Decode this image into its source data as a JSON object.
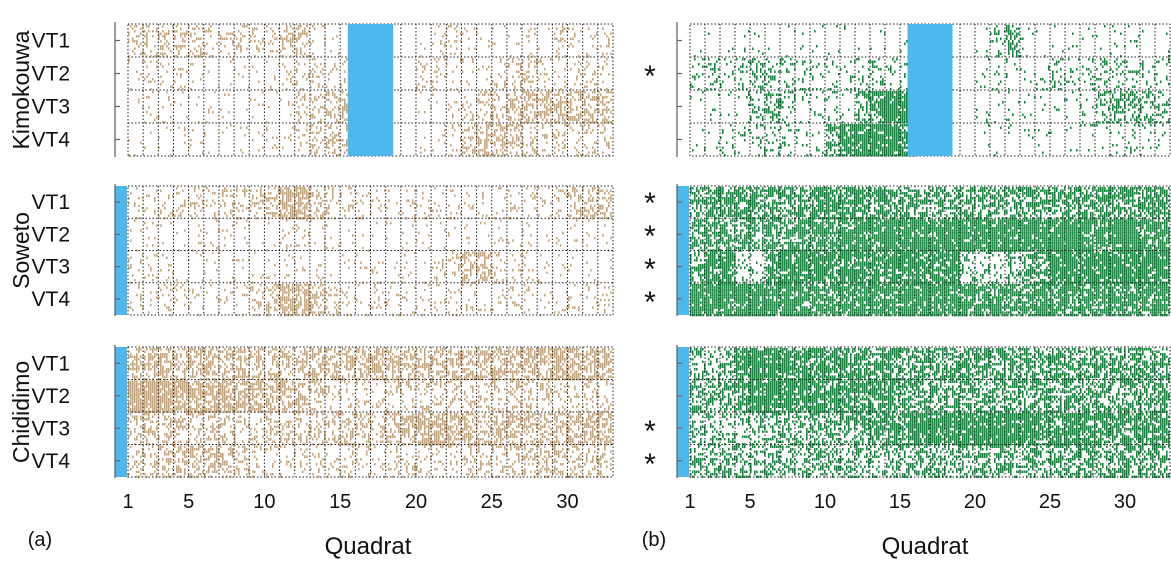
{
  "chart_data": [
    {
      "type": "heatmap",
      "panel_label": "(a)",
      "xlabel": "Quadrat",
      "x_ticks": [
        "1",
        "5",
        "10",
        "15",
        "20",
        "25",
        "30"
      ],
      "x_range": [
        1,
        32
      ],
      "marker_color": "#C8A67A",
      "water_color": "#4DB8EC",
      "sites": [
        {
          "name": "Kimokouwa",
          "rows": [
            "VT1",
            "VT2",
            "VT3",
            "VT4"
          ],
          "significance": [
            "",
            "*",
            "",
            ""
          ],
          "water_quadrats": [
            16,
            19
          ],
          "density": [
            [
              0.3,
              0.3,
              0.3,
              0.25,
              0.2,
              0.15,
              0.15,
              0.15,
              0.15,
              0.2,
              0.35,
              0.35,
              0.1,
              0.05,
              0.05,
              0,
              0,
              0,
              0,
              0.05,
              0.15,
              0.2,
              0.1,
              0.05,
              0.05,
              0.05,
              0.1,
              0.05,
              0.15,
              0.15,
              0.15,
              0.15
            ],
            [
              0.1,
              0.1,
              0.15,
              0.15,
              0.1,
              0.05,
              0.05,
              0.05,
              0.05,
              0.05,
              0.1,
              0.2,
              0.25,
              0.1,
              0.1,
              0,
              0,
              0,
              0,
              0.2,
              0.15,
              0.1,
              0.1,
              0.1,
              0.15,
              0.25,
              0.3,
              0.3,
              0.15,
              0.15,
              0.15,
              0.1
            ],
            [
              0.05,
              0.05,
              0.05,
              0.05,
              0.05,
              0.05,
              0.05,
              0.05,
              0.05,
              0.05,
              0.1,
              0.15,
              0.25,
              0.4,
              0.45,
              0,
              0,
              0,
              0,
              0.05,
              0.05,
              0.1,
              0.15,
              0.25,
              0.3,
              0.45,
              0.5,
              0.5,
              0.5,
              0.45,
              0.5,
              0.5
            ],
            [
              0.05,
              0.05,
              0.05,
              0.05,
              0.05,
              0.05,
              0.05,
              0.05,
              0.05,
              0.05,
              0.1,
              0.15,
              0.25,
              0.35,
              0.35,
              0,
              0,
              0,
              0,
              0.05,
              0.1,
              0.2,
              0.35,
              0.45,
              0.5,
              0.35,
              0.25,
              0.2,
              0.2,
              0.2,
              0.2,
              0.15
            ]
          ]
        },
        {
          "name": "Soweto",
          "rows": [
            "VT1",
            "VT2",
            "VT3",
            "VT4"
          ],
          "significance": [
            "*",
            "*",
            "*",
            "*"
          ],
          "water_quadrats": [
            0,
            0
          ],
          "density": [
            [
              0.15,
              0.15,
              0.15,
              0.15,
              0.2,
              0.2,
              0.2,
              0.2,
              0.25,
              0.4,
              0.7,
              0.7,
              0.4,
              0.2,
              0.15,
              0.1,
              0.1,
              0.1,
              0.1,
              0.1,
              0.1,
              0.1,
              0.1,
              0.1,
              0.1,
              0.1,
              0.1,
              0.1,
              0.15,
              0.35,
              0.45,
              0.45
            ],
            [
              0.05,
              0.05,
              0.05,
              0.05,
              0.05,
              0.05,
              0.05,
              0.05,
              0.05,
              0.05,
              0.1,
              0.15,
              0.1,
              0.05,
              0.05,
              0.05,
              0.05,
              0.05,
              0.05,
              0.05,
              0.05,
              0.05,
              0.05,
              0.05,
              0.05,
              0.05,
              0.05,
              0.05,
              0.05,
              0.05,
              0.05,
              0.05
            ],
            [
              0.1,
              0.1,
              0.1,
              0.05,
              0.05,
              0.05,
              0.05,
              0.05,
              0.05,
              0.05,
              0.05,
              0.05,
              0.05,
              0.05,
              0.05,
              0.05,
              0.05,
              0.05,
              0.05,
              0.05,
              0.1,
              0.2,
              0.45,
              0.45,
              0.2,
              0.1,
              0.05,
              0.05,
              0.05,
              0.05,
              0.05,
              0.05
            ],
            [
              0.1,
              0.1,
              0.1,
              0.1,
              0.1,
              0.1,
              0.1,
              0.1,
              0.2,
              0.4,
              0.7,
              0.7,
              0.4,
              0.2,
              0.1,
              0.1,
              0.1,
              0.1,
              0.1,
              0.1,
              0.1,
              0.1,
              0.1,
              0.1,
              0.1,
              0.1,
              0.1,
              0.1,
              0.1,
              0.1,
              0.1,
              0.1
            ]
          ]
        },
        {
          "name": "Chididimo",
          "rows": [
            "VT1",
            "VT2",
            "VT3",
            "VT4"
          ],
          "significance": [
            "",
            "",
            "*",
            "*"
          ],
          "water_quadrats": [
            0,
            0
          ],
          "density": [
            [
              0.5,
              0.5,
              0.5,
              0.5,
              0.5,
              0.55,
              0.5,
              0.5,
              0.5,
              0.45,
              0.45,
              0.45,
              0.45,
              0.45,
              0.45,
              0.5,
              0.5,
              0.5,
              0.5,
              0.5,
              0.5,
              0.5,
              0.5,
              0.5,
              0.55,
              0.55,
              0.55,
              0.6,
              0.7,
              0.7,
              0.6,
              0.6
            ],
            [
              0.9,
              0.9,
              0.85,
              0.8,
              0.75,
              0.7,
              0.65,
              0.6,
              0.55,
              0.5,
              0.45,
              0.35,
              0.25,
              0.2,
              0.2,
              0.2,
              0.2,
              0.2,
              0.2,
              0.2,
              0.2,
              0.2,
              0.25,
              0.25,
              0.25,
              0.25,
              0.25,
              0.25,
              0.2,
              0.2,
              0.2,
              0.2
            ],
            [
              0.3,
              0.3,
              0.3,
              0.3,
              0.3,
              0.3,
              0.3,
              0.25,
              0.25,
              0.25,
              0.25,
              0.3,
              0.3,
              0.3,
              0.35,
              0.4,
              0.4,
              0.5,
              0.6,
              0.65,
              0.65,
              0.6,
              0.55,
              0.5,
              0.45,
              0.45,
              0.45,
              0.45,
              0.5,
              0.55,
              0.55,
              0.55
            ],
            [
              0.3,
              0.3,
              0.3,
              0.35,
              0.4,
              0.45,
              0.4,
              0.3,
              0.25,
              0.2,
              0.15,
              0.15,
              0.15,
              0.15,
              0.15,
              0.15,
              0.15,
              0.15,
              0.15,
              0.15,
              0.15,
              0.2,
              0.2,
              0.2,
              0.25,
              0.3,
              0.3,
              0.3,
              0.3,
              0.3,
              0.3,
              0.3
            ]
          ]
        }
      ]
    },
    {
      "type": "heatmap",
      "panel_label": "(b)",
      "xlabel": "Quadrat",
      "x_ticks": [
        "1",
        "5",
        "10",
        "15",
        "20",
        "25",
        "30"
      ],
      "x_range": [
        1,
        32
      ],
      "marker_color": "#0F8C3C",
      "water_color": "#4DB8EC",
      "sites": [
        {
          "name": "Kimokouwa",
          "rows": [
            "VT1",
            "VT2",
            "VT3",
            "VT4"
          ],
          "water_quadrats": [
            16,
            19
          ],
          "density": [
            [
              0.03,
              0.03,
              0.03,
              0.03,
              0.03,
              0.03,
              0.03,
              0.03,
              0.03,
              0.03,
              0.03,
              0.03,
              0.03,
              0.03,
              0.03,
              0,
              0,
              0,
              0,
              0.03,
              0.2,
              0.45,
              0.1,
              0.03,
              0.03,
              0.03,
              0.03,
              0.03,
              0.03,
              0.03,
              0.03,
              0.03
            ],
            [
              0.2,
              0.2,
              0.25,
              0.3,
              0.35,
              0.3,
              0.2,
              0.15,
              0.15,
              0.15,
              0.15,
              0.15,
              0.15,
              0.15,
              0.15,
              0,
              0,
              0,
              0,
              0.1,
              0.1,
              0.1,
              0.1,
              0.15,
              0.15,
              0.15,
              0.15,
              0.15,
              0.15,
              0.15,
              0.15,
              0.15
            ],
            [
              0.05,
              0.05,
              0.05,
              0.1,
              0.3,
              0.4,
              0.3,
              0.1,
              0.1,
              0.1,
              0.1,
              0.4,
              0.8,
              0.9,
              0.9,
              0,
              0,
              0,
              0,
              0.05,
              0.05,
              0.05,
              0.05,
              0.05,
              0.05,
              0.05,
              0.1,
              0.3,
              0.4,
              0.4,
              0.35,
              0.3
            ],
            [
              0.05,
              0.05,
              0.1,
              0.15,
              0.2,
              0.2,
              0.15,
              0.1,
              0.15,
              0.5,
              0.8,
              0.85,
              0.9,
              0.9,
              0.85,
              0,
              0,
              0,
              0,
              0.03,
              0.03,
              0.03,
              0.03,
              0.03,
              0.03,
              0.03,
              0.03,
              0.05,
              0.1,
              0.15,
              0.1,
              0.05
            ]
          ]
        },
        {
          "name": "Soweto",
          "rows": [
            "VT1",
            "VT2",
            "VT3",
            "VT4"
          ],
          "water_quadrats": [
            0,
            0
          ],
          "density": [
            [
              0.55,
              0.6,
              0.6,
              0.6,
              0.6,
              0.6,
              0.6,
              0.6,
              0.7,
              0.7,
              0.7,
              0.65,
              0.6,
              0.55,
              0.55,
              0.55,
              0.55,
              0.55,
              0.55,
              0.5,
              0.5,
              0.5,
              0.55,
              0.55,
              0.55,
              0.6,
              0.6,
              0.65,
              0.6,
              0.6,
              0.65,
              0.7
            ],
            [
              0.55,
              0.55,
              0.55,
              0.55,
              0.55,
              0.6,
              0.6,
              0.65,
              0.7,
              0.7,
              0.75,
              0.85,
              0.9,
              0.9,
              0.9,
              0.9,
              0.9,
              0.9,
              0.9,
              0.9,
              0.9,
              0.9,
              0.9,
              0.9,
              0.9,
              0.9,
              0.85,
              0.85,
              0.85,
              0.85,
              0.8,
              0.8
            ],
            [
              0.5,
              0.8,
              0.8,
              0.2,
              0.15,
              0.8,
              0.85,
              0.85,
              0.85,
              0.8,
              0.8,
              0.8,
              0.8,
              0.8,
              0.8,
              0.8,
              0.8,
              0.8,
              0.3,
              0.2,
              0.2,
              0.3,
              0.5,
              0.7,
              0.8,
              0.85,
              0.9,
              0.9,
              0.9,
              0.85,
              0.85,
              0.85
            ],
            [
              0.9,
              0.9,
              0.9,
              0.9,
              0.9,
              0.85,
              0.85,
              0.8,
              0.8,
              0.8,
              0.8,
              0.85,
              0.85,
              0.85,
              0.85,
              0.85,
              0.85,
              0.85,
              0.85,
              0.8,
              0.8,
              0.75,
              0.75,
              0.8,
              0.8,
              0.8,
              0.8,
              0.8,
              0.8,
              0.8,
              0.8,
              0.8
            ]
          ]
        },
        {
          "name": "Chididimo",
          "rows": [
            "VT1",
            "VT2",
            "VT3",
            "VT4"
          ],
          "water_quadrats": [
            0,
            0
          ],
          "density": [
            [
              0.4,
              0.4,
              0.4,
              0.8,
              0.85,
              0.85,
              0.8,
              0.75,
              0.75,
              0.7,
              0.7,
              0.7,
              0.65,
              0.65,
              0.6,
              0.6,
              0.6,
              0.6,
              0.6,
              0.6,
              0.6,
              0.6,
              0.6,
              0.6,
              0.6,
              0.6,
              0.6,
              0.6,
              0.6,
              0.6,
              0.6,
              0.6
            ],
            [
              0.5,
              0.5,
              0.55,
              0.75,
              0.8,
              0.85,
              0.85,
              0.85,
              0.85,
              0.8,
              0.8,
              0.75,
              0.7,
              0.65,
              0.55,
              0.55,
              0.55,
              0.55,
              0.55,
              0.55,
              0.55,
              0.55,
              0.55,
              0.55,
              0.55,
              0.55,
              0.55,
              0.55,
              0.55,
              0.55,
              0.55,
              0.55
            ],
            [
              0.3,
              0.3,
              0.3,
              0.3,
              0.35,
              0.4,
              0.4,
              0.4,
              0.4,
              0.45,
              0.5,
              0.55,
              0.6,
              0.7,
              0.8,
              0.85,
              0.85,
              0.9,
              0.9,
              0.9,
              0.9,
              0.9,
              0.85,
              0.8,
              0.8,
              0.8,
              0.75,
              0.7,
              0.7,
              0.7,
              0.7,
              0.7
            ],
            [
              0.4,
              0.4,
              0.4,
              0.4,
              0.4,
              0.4,
              0.4,
              0.4,
              0.4,
              0.4,
              0.4,
              0.4,
              0.4,
              0.4,
              0.45,
              0.45,
              0.45,
              0.45,
              0.45,
              0.45,
              0.45,
              0.5,
              0.5,
              0.5,
              0.5,
              0.5,
              0.5,
              0.5,
              0.55,
              0.55,
              0.55,
              0.55
            ]
          ]
        }
      ]
    }
  ]
}
